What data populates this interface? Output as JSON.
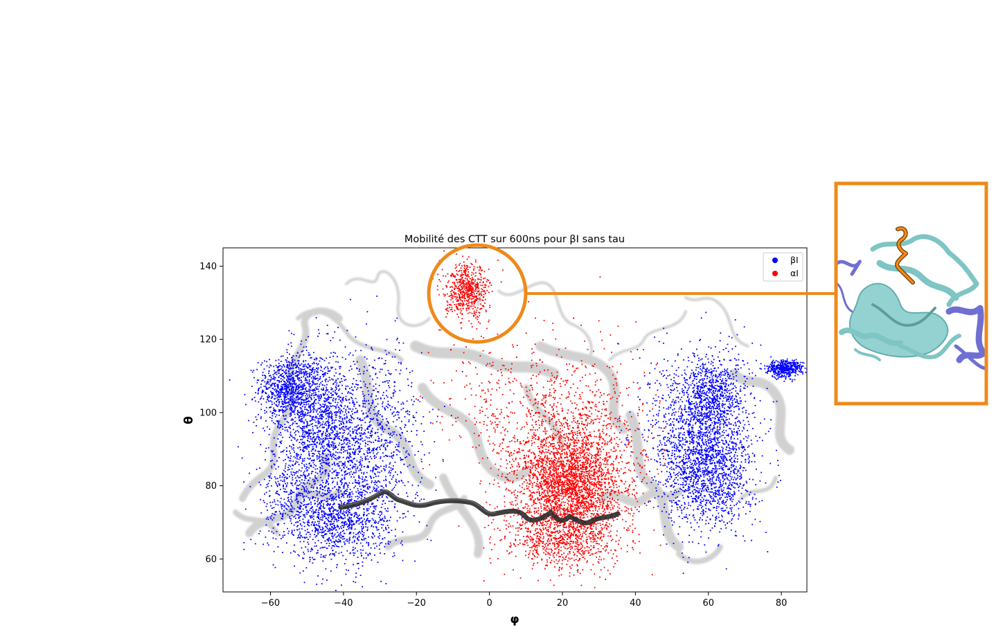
{
  "chart_data": {
    "type": "scatter",
    "title": "Mobilité des CTT sur 600ns pour βI sans tau",
    "xlabel": "φ",
    "ylabel": "θ",
    "xlim": [
      -73,
      87
    ],
    "ylim": [
      51,
      145
    ],
    "x_ticks": [
      -60,
      -40,
      -20,
      0,
      20,
      40,
      60,
      80
    ],
    "y_ticks": [
      60,
      80,
      100,
      120,
      140
    ],
    "x_tick_labels": [
      "−60",
      "−40",
      "−20",
      "0",
      "20",
      "40",
      "60",
      "80"
    ],
    "y_tick_labels": [
      "60",
      "80",
      "100",
      "120",
      "140"
    ],
    "grid": false,
    "legend_position": "top-right",
    "series": [
      {
        "name": "βI",
        "color": "#0000ff",
        "clusters": [
          {
            "cx": -55,
            "cy": 107,
            "sx": 4,
            "sy": 4,
            "n": 700
          },
          {
            "cx": -48,
            "cy": 100,
            "sx": 6,
            "sy": 9,
            "n": 1100
          },
          {
            "cx": -40,
            "cy": 85,
            "sx": 9,
            "sy": 12,
            "n": 1300
          },
          {
            "cx": -42,
            "cy": 70,
            "sx": 7,
            "sy": 5,
            "n": 800
          },
          {
            "cx": -30,
            "cy": 95,
            "sx": 6,
            "sy": 12,
            "n": 500
          },
          {
            "cx": -55,
            "cy": 78,
            "sx": 4,
            "sy": 6,
            "n": 250
          },
          {
            "cx": 58,
            "cy": 95,
            "sx": 7,
            "sy": 11,
            "n": 1500
          },
          {
            "cx": 60,
            "cy": 82,
            "sx": 6,
            "sy": 7,
            "n": 900
          },
          {
            "cx": 62,
            "cy": 105,
            "sx": 4,
            "sy": 5,
            "n": 500
          },
          {
            "cx": 81,
            "cy": 112,
            "sx": 2.5,
            "sy": 1.2,
            "n": 450
          }
        ]
      },
      {
        "name": "αI",
        "color": "#ff0000",
        "clusters": [
          {
            "cx": -6,
            "cy": 133,
            "sx": 3,
            "sy": 3.5,
            "n": 600
          },
          {
            "cx": 22,
            "cy": 80,
            "sx": 7,
            "sy": 8,
            "n": 2500
          },
          {
            "cx": 24,
            "cy": 90,
            "sx": 10,
            "sy": 13,
            "n": 1000
          },
          {
            "cx": 5,
            "cy": 100,
            "sx": 12,
            "sy": 12,
            "n": 350
          },
          {
            "cx": 20,
            "cy": 65,
            "sx": 8,
            "sy": 4,
            "n": 600
          }
        ]
      }
    ]
  },
  "inset": {
    "frame_color": "#ee8a1a"
  }
}
